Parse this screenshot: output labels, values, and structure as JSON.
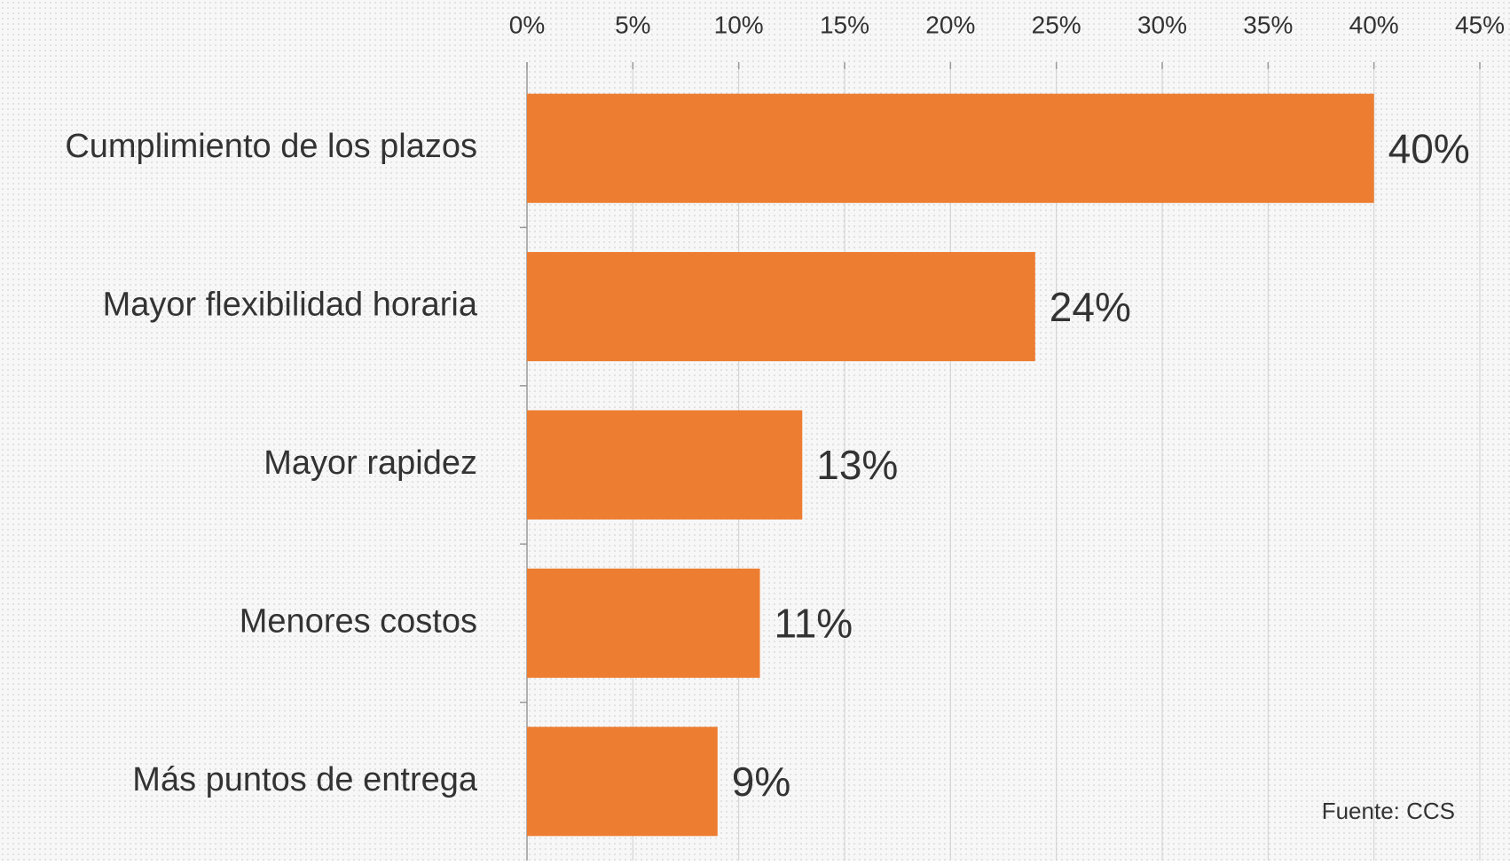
{
  "chart_data": {
    "type": "bar",
    "orientation": "horizontal",
    "categories": [
      "Cumplimiento de los plazos",
      "Mayor flexibilidad horaria",
      "Mayor rapidez",
      "Menores costos",
      "Más puntos de entrega"
    ],
    "values": [
      40,
      24,
      13,
      11,
      9
    ],
    "value_labels": [
      "40%",
      "24%",
      "13%",
      "11%",
      "9%"
    ],
    "color": "#ED7D31",
    "xlim": [
      0,
      45
    ],
    "xticks": [
      {
        "value": 0,
        "label": "0%"
      },
      {
        "value": 5,
        "label": "5%"
      },
      {
        "value": 10,
        "label": "10%"
      },
      {
        "value": 15,
        "label": "15%"
      },
      {
        "value": 20,
        "label": "20%"
      },
      {
        "value": 25,
        "label": "25%"
      },
      {
        "value": 30,
        "label": "30%"
      },
      {
        "value": 35,
        "label": "35%"
      },
      {
        "value": 40,
        "label": "40%"
      },
      {
        "value": 45,
        "label": "45%"
      }
    ],
    "grid": true,
    "annotation": "Fuente: CCS"
  }
}
